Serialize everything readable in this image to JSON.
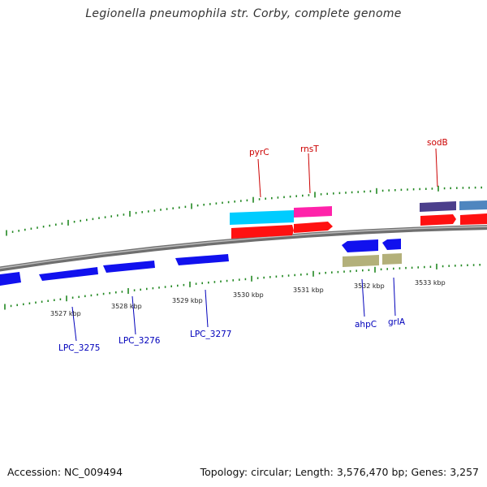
{
  "title": "Legionella pneumophila str. Corby, complete genome",
  "footer": {
    "accession": "Accession: NC_009494",
    "topology": "Topology: circular; Length: 3,576,470 bp; Genes: 3,257"
  },
  "colors": {
    "cds_forward": "#ff0000",
    "cds_reverse": "#0000ff",
    "rna_cyan": "#00ccff",
    "rna_magenta": "#ff22aa",
    "dark_purple": "#4b3f8c",
    "steel_blue": "#4f86bf",
    "khaki": "#b3b07a",
    "tick_green": "#228822",
    "backbone": "#888888",
    "gene_label_forward": "#cc0000",
    "gene_label_reverse": "#0000bb"
  },
  "scale_labels": [
    "3527 kbp",
    "3528 kbp",
    "3529 kbp",
    "3530 kbp",
    "3531 kbp",
    "3532 kbp",
    "3533 kbp"
  ],
  "gene_labels": {
    "pyrC": "pyrC",
    "rnsT": "rnsT",
    "sodB": "sodB",
    "LPC_3275": "LPC_3275",
    "LPC_3276": "LPC_3276",
    "LPC_3277": "LPC_3277",
    "ahpC": "ahpC",
    "grlA": "grlA"
  }
}
